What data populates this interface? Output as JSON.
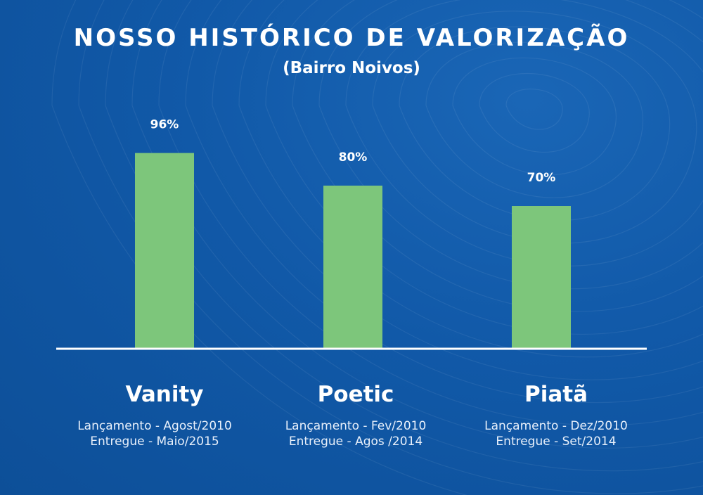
{
  "colors": {
    "background": "#1159a8",
    "bar": "#7dc67b",
    "text": "#ffffff",
    "baseline": "#ffffff"
  },
  "chart_data": {
    "type": "bar",
    "title": "NOSSO HISTÓRICO DE VALORIZAÇÃO",
    "subtitle": "(Bairro Noivos)",
    "categories": [
      "Vanity",
      "Poetic",
      "Piatã"
    ],
    "values": [
      96,
      80,
      70
    ],
    "value_labels": [
      "96%",
      "80%",
      "70%"
    ],
    "ylim": [
      0,
      100
    ],
    "grid": false,
    "details": [
      {
        "launch": "Lançamento - Agost/2010",
        "delivery": "Entregue - Maio/2015"
      },
      {
        "launch": "Lançamento - Fev/2010",
        "delivery": "Entregue - Agos /2014"
      },
      {
        "launch": "Lançamento - Dez/2010",
        "delivery": "Entregue - Set/2014"
      }
    ]
  }
}
